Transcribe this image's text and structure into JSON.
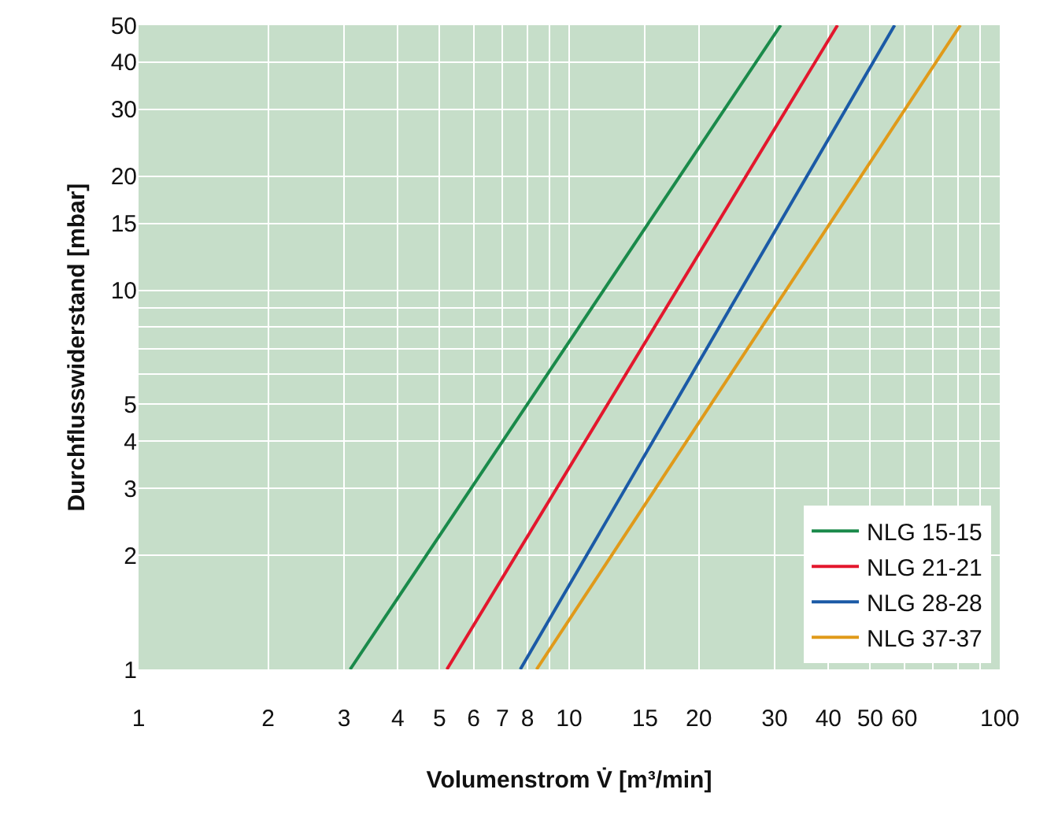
{
  "chart_data": {
    "type": "line",
    "xlabel": "Volumenstrom V̇ [m³/min]",
    "ylabel": "Durchflusswiderstand [mbar]",
    "log": "xy",
    "grid": true,
    "legend": "bottom right",
    "marker": "none",
    "line_style": "solid",
    "xlim": [
      1,
      100
    ],
    "ylim": [
      1,
      50
    ],
    "xticks": [
      1,
      2,
      3,
      4,
      5,
      6,
      7,
      8,
      {
        "value": 9,
        "label": null
      },
      10,
      15,
      20,
      30,
      40,
      50,
      60,
      {
        "value": 70,
        "label": null
      },
      {
        "value": 80,
        "label": null
      },
      {
        "value": 90,
        "label": null
      },
      100
    ],
    "yticks": [
      1,
      2,
      3,
      4,
      5,
      {
        "value": 6,
        "label": null
      },
      {
        "value": 7,
        "label": null
      },
      {
        "value": 8,
        "label": null
      },
      {
        "value": 9,
        "label": null
      },
      10,
      15,
      20,
      30,
      40,
      50
    ],
    "series": [
      {
        "name": "NLG 15-15",
        "color": "#1a8a4a",
        "x": [
          3.1,
          31
        ],
        "values": [
          1,
          50
        ]
      },
      {
        "name": "NLG 21-21",
        "color": "#e3172d",
        "x": [
          5.2,
          42
        ],
        "values": [
          1,
          50
        ]
      },
      {
        "name": "NLG 28-28",
        "color": "#1b5aa6",
        "x": [
          7.7,
          57
        ],
        "values": [
          1,
          50
        ]
      },
      {
        "name": "NLG 37-37",
        "color": "#e09a1a",
        "x": [
          8.4,
          81
        ],
        "values": [
          1,
          50
        ]
      }
    ]
  }
}
